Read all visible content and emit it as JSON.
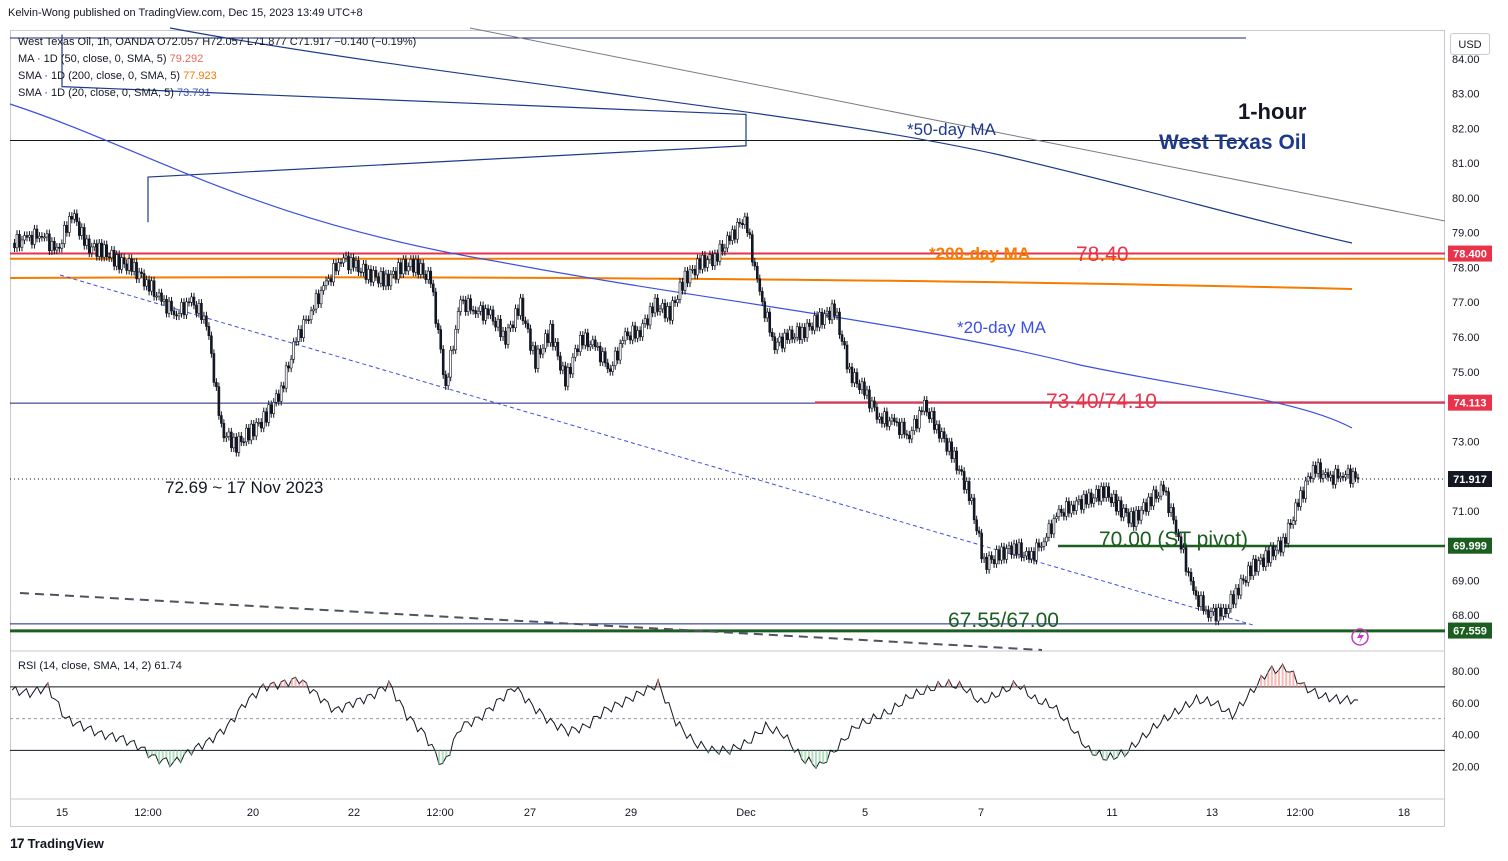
{
  "header": {
    "published": "Kelvin-Wong published on TradingView.com, Dec 15, 2023 13:49 UTC+8"
  },
  "legend": {
    "instrument": "West Texas Oil, 1h, OANDA",
    "ohlc": "O72.057 H72.057 L71.877 C71.917 −0.140 (−0.19%)",
    "ma50_label": "MA · 1D (50, close, 0, SMA, 5)",
    "ma50_value": "79.292",
    "sma200_label": "SMA · 1D (200, close, 0, SMA, 5)",
    "sma200_value": "77.923",
    "sma20_label": "SMA · 1D (20, close, 0, SMA, 5)",
    "sma20_value": "73.791",
    "rsi_label": "RSI (14, close, SMA, 14, 2)",
    "rsi_value": "61.74"
  },
  "currency_button": "USD",
  "footer": {
    "brand": "TradingView"
  },
  "annotations": {
    "timeframe": "1-hour",
    "instrument": "West Texas Oil",
    "ma50": "*50-day MA",
    "ma200": "*200-day MA",
    "level_7840": "78.40",
    "ma20": "*20-day MA",
    "level_7340": "73.40/74.10",
    "low_note": "72.69 ~ 17 Nov 2023",
    "pivot": "70.00 (ST pivot)",
    "support": "67.55/67.00"
  },
  "colors": {
    "candle": "#131722",
    "ma50": "#1e3a8a",
    "ma200": "#f57c00",
    "ma20": "#3b4fe0",
    "resistance": "#e8334a",
    "support": "#1b5e20",
    "rsi": "#131722"
  },
  "chart_data": [
    {
      "type": "line",
      "title": "West Texas Oil, 1h, OANDA",
      "xlabel": "",
      "ylabel": "",
      "x_ticks": [
        "15",
        "12:00",
        "20",
        "22",
        "12:00",
        "27",
        "29",
        "Dec",
        "5",
        "7",
        "11",
        "13",
        "12:00",
        "18"
      ],
      "y_ticks": [
        68.0,
        69.0,
        70.0,
        71.0,
        72.0,
        73.0,
        74.0,
        75.0,
        76.0,
        77.0,
        78.0,
        79.0,
        80.0,
        81.0,
        82.0,
        83.0,
        84.0
      ],
      "ylim": [
        67.0,
        84.8
      ],
      "price_labels": [
        {
          "value": "78.400",
          "color": "#e8334a"
        },
        {
          "value": "74.113",
          "color": "#e8334a"
        },
        {
          "value": "71.917",
          "color": "#131722"
        },
        {
          "value": "69.999",
          "color": "#1b5e20"
        },
        {
          "value": "67.559",
          "color": "#1b5e20"
        }
      ],
      "horizontal_levels": [
        84.6,
        81.65,
        78.4,
        78.25,
        74.1,
        69.99,
        67.55
      ],
      "series": [
        {
          "name": "West Texas Oil",
          "values": [
            78.7,
            78.8,
            79.0,
            78.4,
            79.6,
            78.6,
            78.5,
            78.2,
            78.0,
            77.6,
            77.0,
            76.7,
            77.0,
            76.5,
            73.3,
            72.9,
            73.3,
            73.7,
            74.5,
            75.9,
            76.8,
            77.5,
            78.3,
            78.0,
            77.8,
            77.6,
            78.0,
            78.1,
            77.6,
            74.6,
            77.0,
            76.8,
            76.6,
            76.0,
            76.9,
            75.3,
            76.2,
            74.7,
            76.0,
            75.7,
            75.1,
            76.0,
            76.2,
            76.9,
            76.7,
            77.7,
            78.1,
            78.3,
            78.8,
            79.5,
            77.2,
            75.8,
            76.0,
            76.2,
            76.5,
            76.8,
            75.0,
            74.4,
            73.7,
            73.5,
            73.2,
            74.0,
            73.3,
            72.5,
            71.5,
            69.5,
            69.7,
            70.0,
            69.6,
            70.2,
            70.9,
            71.2,
            71.3,
            71.6,
            71.1,
            70.7,
            71.3,
            71.6,
            70.3,
            68.6,
            68.1,
            68.0,
            68.8,
            69.4,
            69.7,
            70.1,
            71.2,
            72.3,
            71.9,
            72.1,
            71.917
          ]
        },
        {
          "name": "*50-day MA",
          "x": [
            "15",
            "Dec",
            "12:00"
          ],
          "values": [
            84.7,
            82.4,
            79.3
          ]
        },
        {
          "name": "*200-day MA",
          "x": [
            "15",
            "Dec",
            "12:00"
          ],
          "values": [
            78.25,
            78.15,
            77.92
          ]
        },
        {
          "name": "*20-day MA",
          "x": [
            "15",
            "20",
            "Dec",
            "12:00"
          ],
          "values": [
            83.5,
            80.3,
            77.0,
            73.8
          ]
        }
      ]
    },
    {
      "type": "line",
      "title": "RSI (14, close, SMA, 14, 2)",
      "y_ticks": [
        20.0,
        40.0,
        60.0,
        80.0
      ],
      "ylim": [
        0,
        92
      ],
      "levels": [
        70,
        50,
        30
      ],
      "series": [
        {
          "name": "RSI",
          "values": [
            68,
            66,
            70,
            50,
            45,
            40,
            38,
            33,
            25,
            22,
            30,
            36,
            45,
            60,
            70,
            72,
            75,
            65,
            55,
            60,
            64,
            72,
            52,
            40,
            20,
            45,
            50,
            60,
            70,
            58,
            48,
            42,
            45,
            55,
            60,
            66,
            72,
            48,
            35,
            30,
            30,
            35,
            45,
            40,
            25,
            20,
            32,
            45,
            50,
            55,
            64,
            68,
            72,
            70,
            60,
            66,
            72,
            62,
            58,
            45,
            30,
            25,
            28,
            38,
            48,
            55,
            62,
            60,
            52,
            66,
            80,
            82,
            70,
            64,
            62,
            61.74
          ]
        }
      ]
    }
  ]
}
